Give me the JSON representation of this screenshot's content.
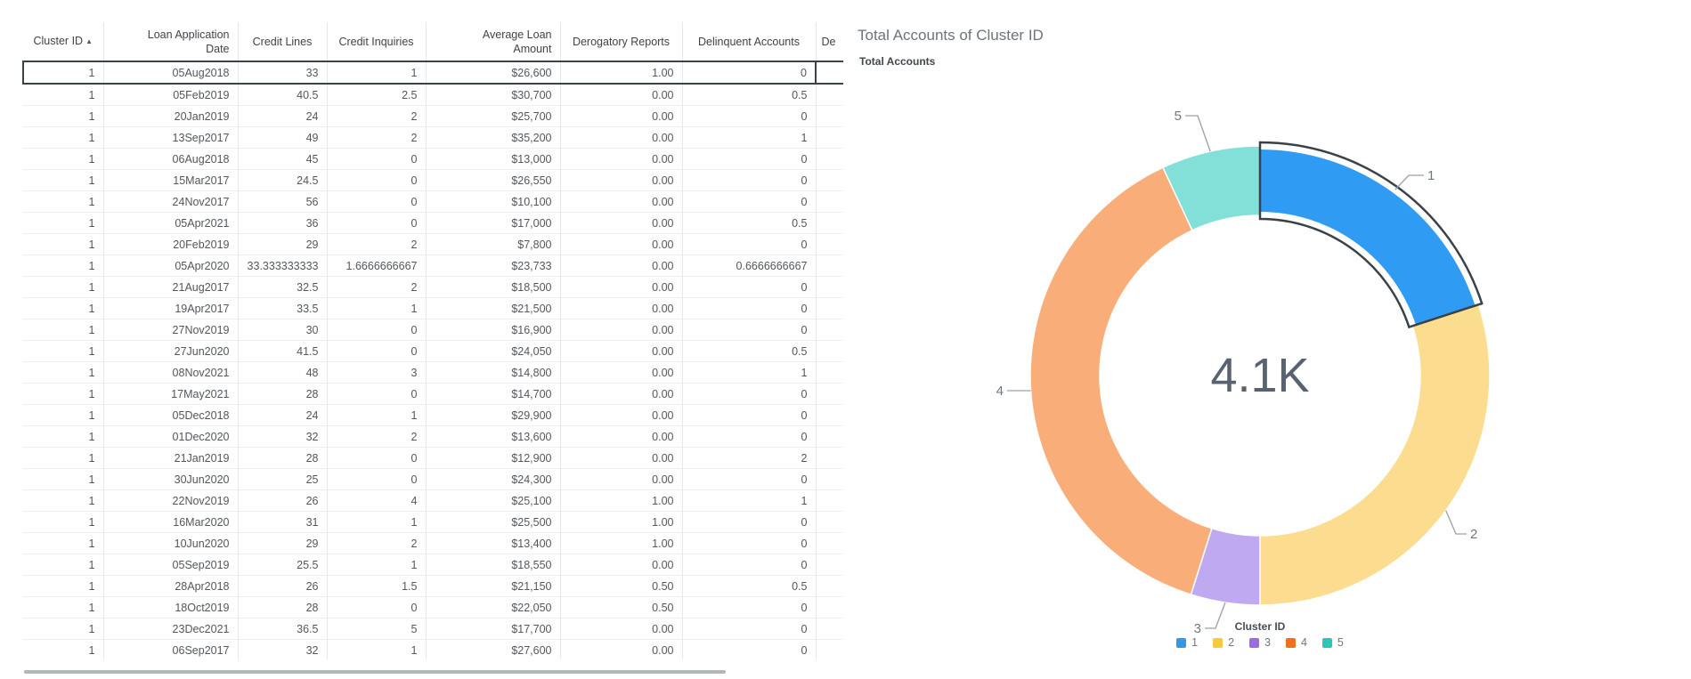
{
  "table": {
    "sort_icon": "▲",
    "columns": [
      {
        "label": "Cluster ID"
      },
      {
        "label": "Loan Application Date"
      },
      {
        "label": "Credit Lines"
      },
      {
        "label": "Credit Inquiries"
      },
      {
        "label": "Average Loan Amount"
      },
      {
        "label": "Derogatory Reports"
      },
      {
        "label": "Delinquent Accounts"
      },
      {
        "label": "De"
      }
    ],
    "selected_row_index": 0,
    "rows": [
      [
        "1",
        "05Aug2018",
        "33",
        "1",
        "$26,600",
        "1.00",
        "0"
      ],
      [
        "1",
        "05Feb2019",
        "40.5",
        "2.5",
        "$30,700",
        "0.00",
        "0.5"
      ],
      [
        "1",
        "20Jan2019",
        "24",
        "2",
        "$25,700",
        "0.00",
        "0"
      ],
      [
        "1",
        "13Sep2017",
        "49",
        "2",
        "$35,200",
        "0.00",
        "1"
      ],
      [
        "1",
        "06Aug2018",
        "45",
        "0",
        "$13,000",
        "0.00",
        "0"
      ],
      [
        "1",
        "15Mar2017",
        "24.5",
        "0",
        "$26,550",
        "0.00",
        "0"
      ],
      [
        "1",
        "24Nov2017",
        "56",
        "0",
        "$10,100",
        "0.00",
        "0"
      ],
      [
        "1",
        "05Apr2021",
        "36",
        "0",
        "$17,000",
        "0.00",
        "0.5"
      ],
      [
        "1",
        "20Feb2019",
        "29",
        "2",
        "$7,800",
        "0.00",
        "0"
      ],
      [
        "1",
        "05Apr2020",
        "33.333333333",
        "1.6666666667",
        "$23,733",
        "0.00",
        "0.6666666667"
      ],
      [
        "1",
        "21Aug2017",
        "32.5",
        "2",
        "$18,500",
        "0.00",
        "0"
      ],
      [
        "1",
        "19Apr2017",
        "33.5",
        "1",
        "$21,500",
        "0.00",
        "0"
      ],
      [
        "1",
        "27Nov2019",
        "30",
        "0",
        "$16,900",
        "0.00",
        "0"
      ],
      [
        "1",
        "27Jun2020",
        "41.5",
        "0",
        "$24,050",
        "0.00",
        "0.5"
      ],
      [
        "1",
        "08Nov2021",
        "48",
        "3",
        "$14,800",
        "0.00",
        "1"
      ],
      [
        "1",
        "17May2021",
        "28",
        "0",
        "$14,700",
        "0.00",
        "0"
      ],
      [
        "1",
        "05Dec2018",
        "24",
        "1",
        "$29,900",
        "0.00",
        "0"
      ],
      [
        "1",
        "01Dec2020",
        "32",
        "2",
        "$13,600",
        "0.00",
        "0"
      ],
      [
        "1",
        "21Jan2019",
        "28",
        "0",
        "$12,900",
        "0.00",
        "2"
      ],
      [
        "1",
        "30Jun2020",
        "25",
        "0",
        "$24,300",
        "0.00",
        "0"
      ],
      [
        "1",
        "22Nov2019",
        "26",
        "4",
        "$25,100",
        "1.00",
        "1"
      ],
      [
        "1",
        "16Mar2020",
        "31",
        "1",
        "$25,500",
        "1.00",
        "0"
      ],
      [
        "1",
        "10Jun2020",
        "29",
        "2",
        "$13,400",
        "1.00",
        "0"
      ],
      [
        "1",
        "05Sep2019",
        "25.5",
        "1",
        "$18,550",
        "0.00",
        "0"
      ],
      [
        "1",
        "28Apr2018",
        "26",
        "1.5",
        "$21,150",
        "0.50",
        "0.5"
      ],
      [
        "1",
        "18Oct2019",
        "28",
        "0",
        "$22,050",
        "0.50",
        "0"
      ],
      [
        "1",
        "23Dec2021",
        "36.5",
        "5",
        "$17,700",
        "0.00",
        "0"
      ],
      [
        "1",
        "06Sep2017",
        "32",
        "1",
        "$27,600",
        "0.00",
        "0"
      ]
    ]
  },
  "chart_data": {
    "type": "pie",
    "title": "Total Accounts of Cluster ID",
    "subtitle": "Total Accounts",
    "center_total": "4.1K",
    "categories": [
      "1",
      "2",
      "3",
      "4",
      "5"
    ],
    "values_pct_estimated": [
      20.0,
      30.0,
      4.9,
      38.2,
      6.9
    ],
    "slice_angles_deg": [
      [
        0,
        72
      ],
      [
        72,
        180
      ],
      [
        180,
        197.5
      ],
      [
        197.5,
        335
      ],
      [
        335,
        360
      ]
    ],
    "selected_category": "1",
    "legend_title": "Cluster ID",
    "legend_position": "bottom",
    "slice_colors": [
      "#2f9bf3",
      "#fcdc8e",
      "#bfa9f1",
      "#f9ae79",
      "#82e0d8"
    ],
    "legend_colors": [
      "#3498e8",
      "#f8c93e",
      "#9b6be0",
      "#f26f1d",
      "#2cc6b8"
    ],
    "selected_outline_color": "#3a4147"
  }
}
